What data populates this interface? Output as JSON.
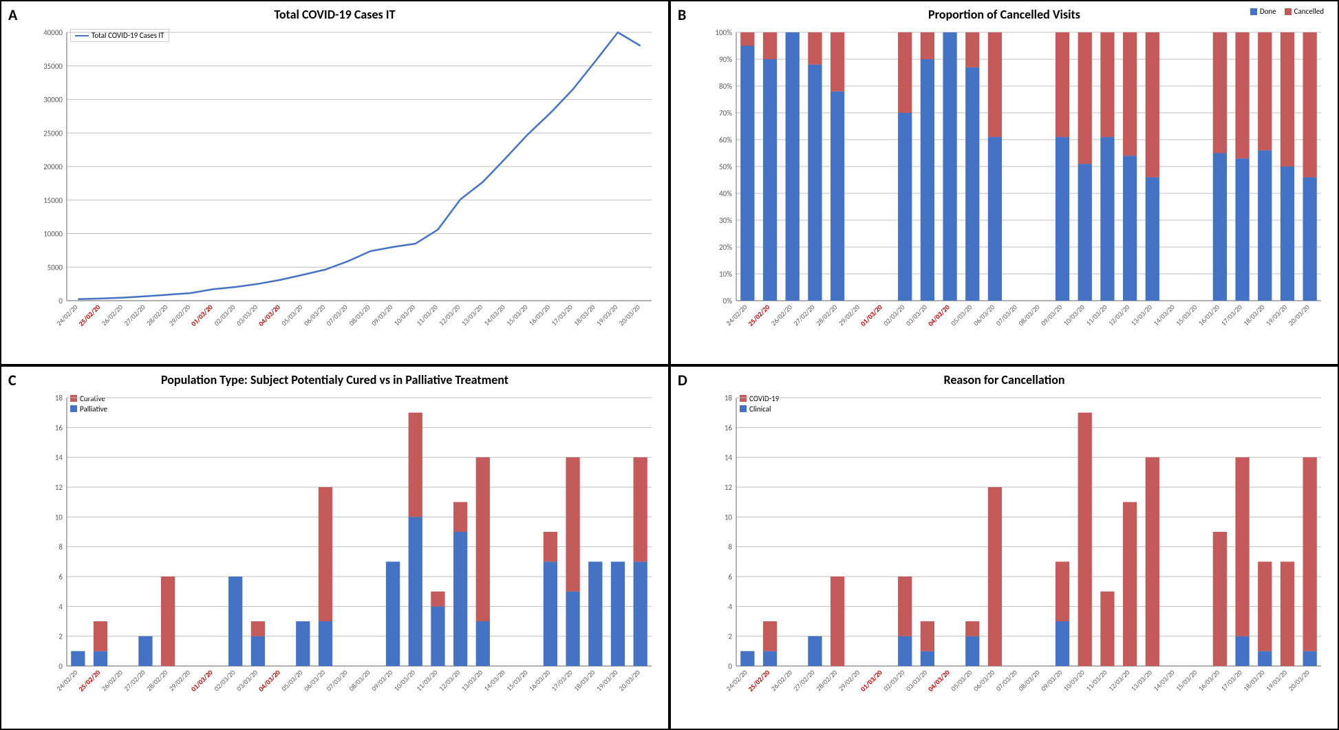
{
  "dates": [
    "24/02/20",
    "25/02/20",
    "26/02/20",
    "27/02/20",
    "28/02/20",
    "29/02/20",
    "01/03/20",
    "02/03/20",
    "03/03/20",
    "04/03/20",
    "05/03/20",
    "06/03/20",
    "07/03/20",
    "08/03/20",
    "09/03/20",
    "10/03/20",
    "11/03/20",
    "12/03/20",
    "13/03/20",
    "14/03/20",
    "15/03/20",
    "16/03/20",
    "17/03/20",
    "18/03/20",
    "19/03/20",
    "20/03/20"
  ],
  "red_dates": [
    "25/02/20",
    "01/03/20",
    "04/03/20"
  ],
  "colors": {
    "blue": "#4472c4",
    "red": "#c55a5a",
    "grid": "#bfbfbf",
    "axis": "#808080",
    "text": "#595959"
  },
  "panelA": {
    "label": "A",
    "title": "Total COVID-19 Cases IT",
    "legend_label": "Total COVID-19 Cases IT",
    "ymax": 40000,
    "ystep": 5000,
    "values": [
      230,
      320,
      450,
      650,
      890,
      1130,
      1700,
      2040,
      2500,
      3100,
      3860,
      4640,
      5880,
      7380,
      8000,
      8500,
      10600,
      15100,
      17700,
      21200,
      24800,
      27980,
      31500,
      35700,
      41035,
      38000
    ]
  },
  "panelB": {
    "label": "B",
    "title": "Proportion of Cancelled Visits",
    "legend": [
      {
        "label": "Done",
        "color": "#4472c4"
      },
      {
        "label": "Cancelled",
        "color": "#c55a5a"
      }
    ],
    "ymax": 100,
    "ystep": 10,
    "done": [
      95,
      90,
      100,
      88,
      78,
      null,
      null,
      70,
      90,
      100,
      87,
      61,
      null,
      null,
      61,
      51,
      61,
      54,
      46,
      null,
      null,
      55,
      53,
      56,
      50,
      46
    ],
    "cancelled": [
      5,
      10,
      0,
      12,
      22,
      null,
      null,
      30,
      10,
      0,
      13,
      39,
      null,
      null,
      39,
      49,
      39,
      46,
      54,
      null,
      null,
      45,
      47,
      44,
      50,
      54
    ]
  },
  "panelC": {
    "label": "C",
    "title": "Population Type: Subject Potentialy Cured vs in Palliative Treatment",
    "legend": [
      {
        "label": "Curative",
        "color": "#c55a5a"
      },
      {
        "label": "Palliative",
        "color": "#4472c4"
      }
    ],
    "ymax": 18,
    "ystep": 2,
    "palliative": [
      1,
      1,
      0,
      2,
      0,
      null,
      null,
      6,
      2,
      0,
      3,
      3,
      null,
      null,
      7,
      10,
      4,
      9,
      3,
      null,
      null,
      7,
      5,
      7,
      7,
      7
    ],
    "curative": [
      0,
      2,
      0,
      0,
      6,
      null,
      null,
      0,
      1,
      0,
      0,
      9,
      null,
      null,
      0,
      7,
      1,
      2,
      11,
      null,
      null,
      2,
      9,
      0,
      0,
      7
    ]
  },
  "panelD": {
    "label": "D",
    "title": "Reason for Cancellation",
    "legend": [
      {
        "label": "COVID-19",
        "color": "#c55a5a"
      },
      {
        "label": "Clinical",
        "color": "#4472c4"
      }
    ],
    "ymax": 18,
    "ystep": 2,
    "clinical": [
      1,
      1,
      0,
      2,
      0,
      null,
      null,
      2,
      1,
      0,
      2,
      0,
      null,
      null,
      3,
      0,
      0,
      0,
      0,
      null,
      null,
      0,
      2,
      1,
      0,
      1
    ],
    "covid": [
      0,
      2,
      0,
      0,
      6,
      null,
      null,
      4,
      2,
      0,
      1,
      12,
      null,
      null,
      4,
      17,
      5,
      11,
      14,
      null,
      null,
      9,
      12,
      6,
      7,
      13
    ]
  }
}
